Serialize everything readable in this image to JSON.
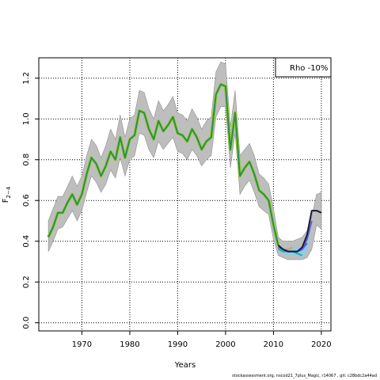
{
  "chart_data": {
    "type": "line",
    "xlabel": "Years",
    "ylabel_main": "F",
    "ylabel_sub": "2−4",
    "xlim": [
      1961,
      2022
    ],
    "ylim": [
      -0.04,
      1.3
    ],
    "x_ticks": [
      1970,
      1980,
      1990,
      2000,
      2010,
      2020
    ],
    "y_ticks": [
      0.0,
      0.2,
      0.4,
      0.6,
      0.8,
      1.0,
      1.2
    ],
    "y_tick_labels": [
      "0.0",
      "0.2",
      "0.4",
      "0.6",
      "0.8",
      "1.0",
      "1.2"
    ],
    "grid": true,
    "legend_text": "Rho -10%",
    "legend_position": "top-right",
    "band_color": "#bebebe",
    "main_series_color": "#2e8b57",
    "main_series_outline": "#9acd32",
    "main_series": {
      "x": [
        1963,
        1964,
        1965,
        1966,
        1967,
        1968,
        1969,
        1970,
        1971,
        1972,
        1973,
        1974,
        1975,
        1976,
        1977,
        1978,
        1979,
        1980,
        1981,
        1982,
        1983,
        1984,
        1985,
        1986,
        1987,
        1988,
        1989,
        1990,
        1991,
        1992,
        1993,
        1994,
        1995,
        1996,
        1997,
        1998,
        1999,
        2000,
        2001,
        2002,
        2003,
        2004,
        2005,
        2006,
        2007,
        2008,
        2009,
        2010,
        2011
      ],
      "y": [
        0.42,
        0.47,
        0.54,
        0.54,
        0.59,
        0.63,
        0.58,
        0.63,
        0.73,
        0.81,
        0.78,
        0.72,
        0.77,
        0.84,
        0.8,
        0.91,
        0.81,
        0.9,
        0.92,
        1.04,
        1.03,
        0.95,
        0.9,
        0.99,
        0.94,
        0.97,
        1.01,
        0.93,
        0.92,
        0.89,
        0.95,
        0.91,
        0.85,
        0.89,
        0.91,
        1.12,
        1.17,
        1.16,
        0.85,
        1.03,
        0.72,
        0.76,
        0.79,
        0.73,
        0.65,
        0.63,
        0.6,
        0.48,
        0.38
      ]
    },
    "band_upper": [
      0.5,
      0.56,
      0.62,
      0.62,
      0.67,
      0.72,
      0.67,
      0.72,
      0.82,
      0.9,
      0.87,
      0.81,
      0.87,
      0.95,
      0.9,
      1.02,
      0.91,
      1.0,
      1.02,
      1.14,
      1.13,
      1.05,
      1.0,
      1.09,
      1.04,
      1.07,
      1.11,
      1.03,
      1.02,
      0.99,
      1.05,
      1.01,
      0.95,
      0.99,
      1.01,
      1.23,
      1.28,
      1.27,
      0.96,
      1.14,
      0.82,
      0.85,
      0.88,
      0.82,
      0.73,
      0.71,
      0.68,
      0.56,
      0.42,
      0.4,
      0.4,
      0.4,
      0.41,
      0.42,
      0.45,
      0.52,
      0.63,
      0.64
    ],
    "band_lower": [
      0.35,
      0.4,
      0.46,
      0.47,
      0.51,
      0.55,
      0.5,
      0.55,
      0.64,
      0.72,
      0.69,
      0.64,
      0.68,
      0.75,
      0.71,
      0.81,
      0.72,
      0.8,
      0.82,
      0.93,
      0.92,
      0.85,
      0.81,
      0.89,
      0.85,
      0.88,
      0.91,
      0.84,
      0.83,
      0.8,
      0.85,
      0.82,
      0.77,
      0.8,
      0.82,
      1.01,
      1.06,
      1.06,
      0.76,
      0.93,
      0.63,
      0.67,
      0.7,
      0.64,
      0.57,
      0.55,
      0.53,
      0.41,
      0.33,
      0.32,
      0.31,
      0.31,
      0.31,
      0.31,
      0.32,
      0.36,
      0.48,
      0.46
    ],
    "band_x": [
      1963,
      1964,
      1965,
      1966,
      1967,
      1968,
      1969,
      1970,
      1971,
      1972,
      1973,
      1974,
      1975,
      1976,
      1977,
      1978,
      1979,
      1980,
      1981,
      1982,
      1983,
      1984,
      1985,
      1986,
      1987,
      1988,
      1989,
      1990,
      1991,
      1992,
      1993,
      1994,
      1995,
      1996,
      1997,
      1998,
      1999,
      2000,
      2001,
      2002,
      2003,
      2004,
      2005,
      2006,
      2007,
      2008,
      2009,
      2010,
      2011,
      2012,
      2013,
      2014,
      2015,
      2016,
      2017,
      2018,
      2019,
      2020
    ],
    "retro_band": {
      "color": "#87ceeb",
      "x": [
        2011,
        2012,
        2013,
        2014,
        2015,
        2016,
        2017,
        2018
      ],
      "upper": [
        0.38,
        0.37,
        0.37,
        0.37,
        0.37,
        0.37,
        0.4,
        0.52
      ],
      "lower": [
        0.35,
        0.34,
        0.33,
        0.33,
        0.33,
        0.32,
        0.35,
        0.48
      ]
    },
    "retro_series": [
      {
        "color": "#d2a24c",
        "x": [
          2011,
          2012,
          2013,
          2014
        ],
        "y": [
          0.37,
          0.36,
          0.36,
          0.37
        ]
      },
      {
        "color": "#2e8b57",
        "x": [
          2011,
          2012,
          2013,
          2014,
          2015
        ],
        "y": [
          0.37,
          0.36,
          0.35,
          0.35,
          0.34
        ]
      },
      {
        "color": "#20b2aa",
        "x": [
          2011,
          2012,
          2013,
          2014,
          2015,
          2016
        ],
        "y": [
          0.36,
          0.35,
          0.35,
          0.35,
          0.34,
          0.33
        ]
      },
      {
        "color": "#4169e1",
        "x": [
          2011,
          2012,
          2013,
          2014,
          2015,
          2016,
          2017
        ],
        "y": [
          0.37,
          0.36,
          0.35,
          0.35,
          0.35,
          0.36,
          0.39
        ]
      },
      {
        "color": "#6a5acd",
        "x": [
          2011,
          2012,
          2013,
          2014,
          2015,
          2016,
          2017,
          2018
        ],
        "y": [
          0.38,
          0.36,
          0.35,
          0.35,
          0.35,
          0.36,
          0.41,
          0.5
        ]
      },
      {
        "color": "#1a1a3a",
        "x": [
          2011,
          2012,
          2013,
          2014,
          2015,
          2016,
          2017,
          2018,
          2019,
          2020
        ],
        "y": [
          0.38,
          0.36,
          0.35,
          0.35,
          0.35,
          0.37,
          0.43,
          0.55,
          0.55,
          0.54
        ]
      }
    ]
  },
  "footer_text": "stockassessment.org, nscod21_7plus_Magic, r14067 , git: c28bdc2a44ad"
}
